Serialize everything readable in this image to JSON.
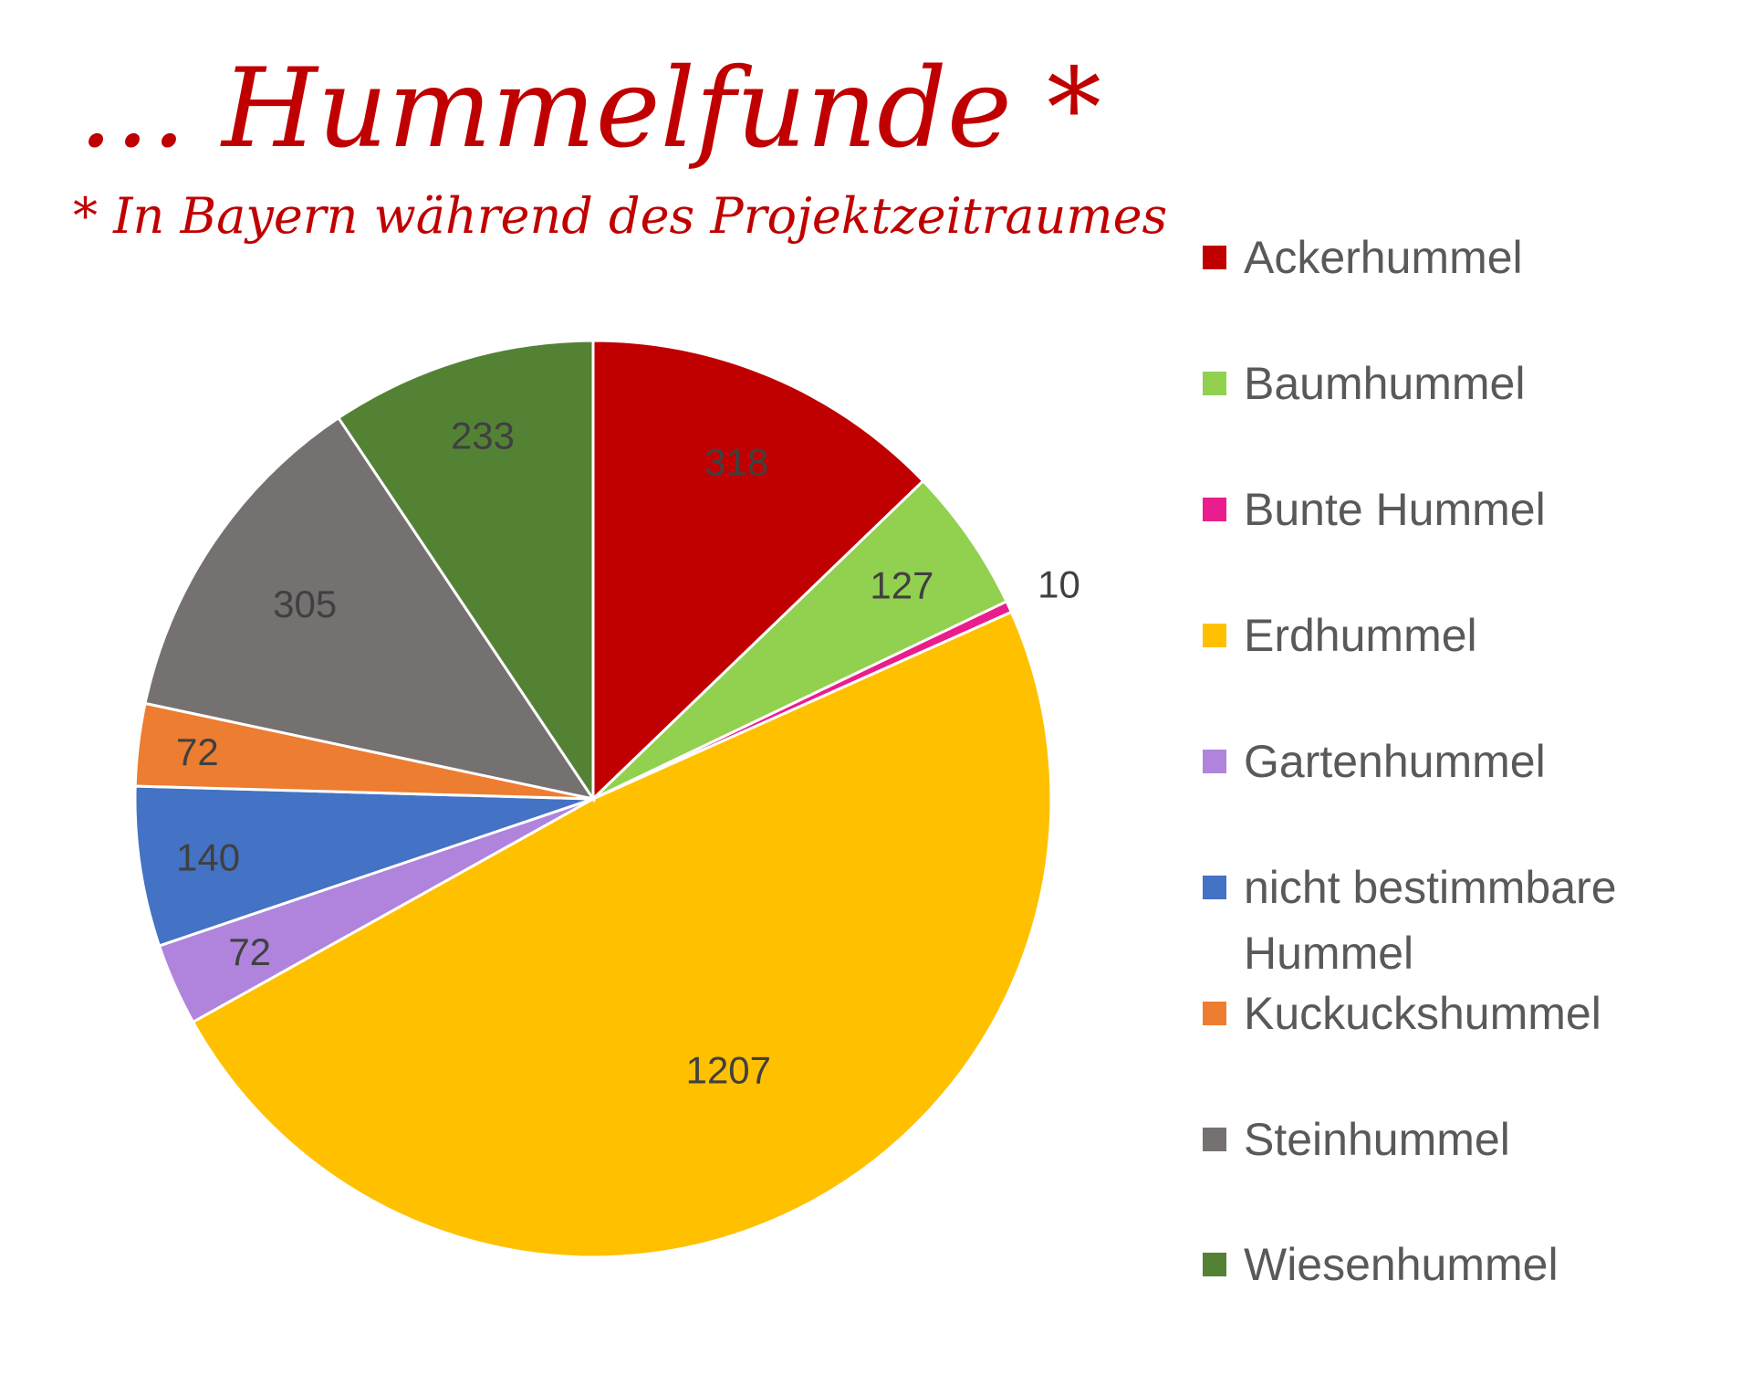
{
  "title": "… Hummelfunde *",
  "subtitle": "* In Bayern während des Projektzeitraumes",
  "chart_data": {
    "type": "pie",
    "categories": [
      "Ackerhummel",
      "Baumhummel",
      "Bunte Hummel",
      "Erdhummel",
      "Gartenhummel",
      "nicht bestimmbare Hummel",
      "Kuckuckshummel",
      "Steinhummel",
      "Wiesenhummel"
    ],
    "values": [
      318,
      127,
      10,
      1207,
      72,
      140,
      72,
      305,
      233
    ],
    "colors": [
      "#c00000",
      "#92d050",
      "#e91e8c",
      "#ffc000",
      "#b084dc",
      "#4472c4",
      "#ed7d31",
      "#767171",
      "#548235"
    ],
    "labels": [
      "318",
      "127",
      "10",
      "1207",
      "72",
      "140",
      "72",
      "305",
      "233"
    ],
    "legend_entries": [
      "Ackerhummel",
      "Baumhummel",
      "Bunte Hummel",
      "Erdhummel",
      "Gartenhummel",
      "nicht bestimmbare",
      "Hummel",
      "Kuckuckshummel",
      "Steinhummel",
      "Wiesenhummel"
    ],
    "start_angle": "12 o'clock, clockwise",
    "legend_position": "right",
    "show_data_labels": true
  }
}
